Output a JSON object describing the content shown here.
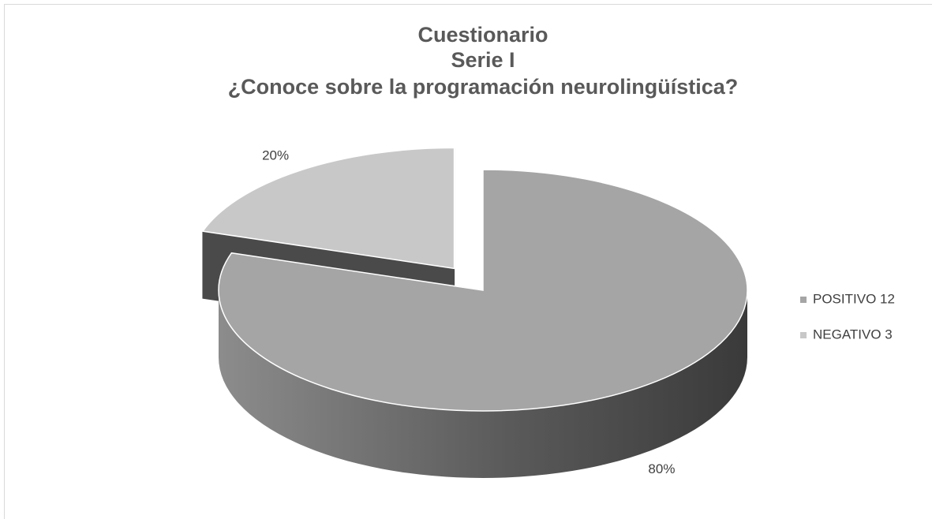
{
  "chart_data": {
    "type": "pie3d",
    "title": [
      "Cuestionario",
      "Serie I",
      "¿Conoce sobre la programación neurolingüística?"
    ],
    "categories": [
      "POSITIVO 12",
      "NEGATIVO 3"
    ],
    "values": [
      80,
      20
    ],
    "value_labels": [
      "80%",
      "20%"
    ],
    "colors": [
      "#a5a5a5",
      "#c8c8c8"
    ],
    "explode": [
      false,
      true
    ],
    "legend": "right"
  }
}
